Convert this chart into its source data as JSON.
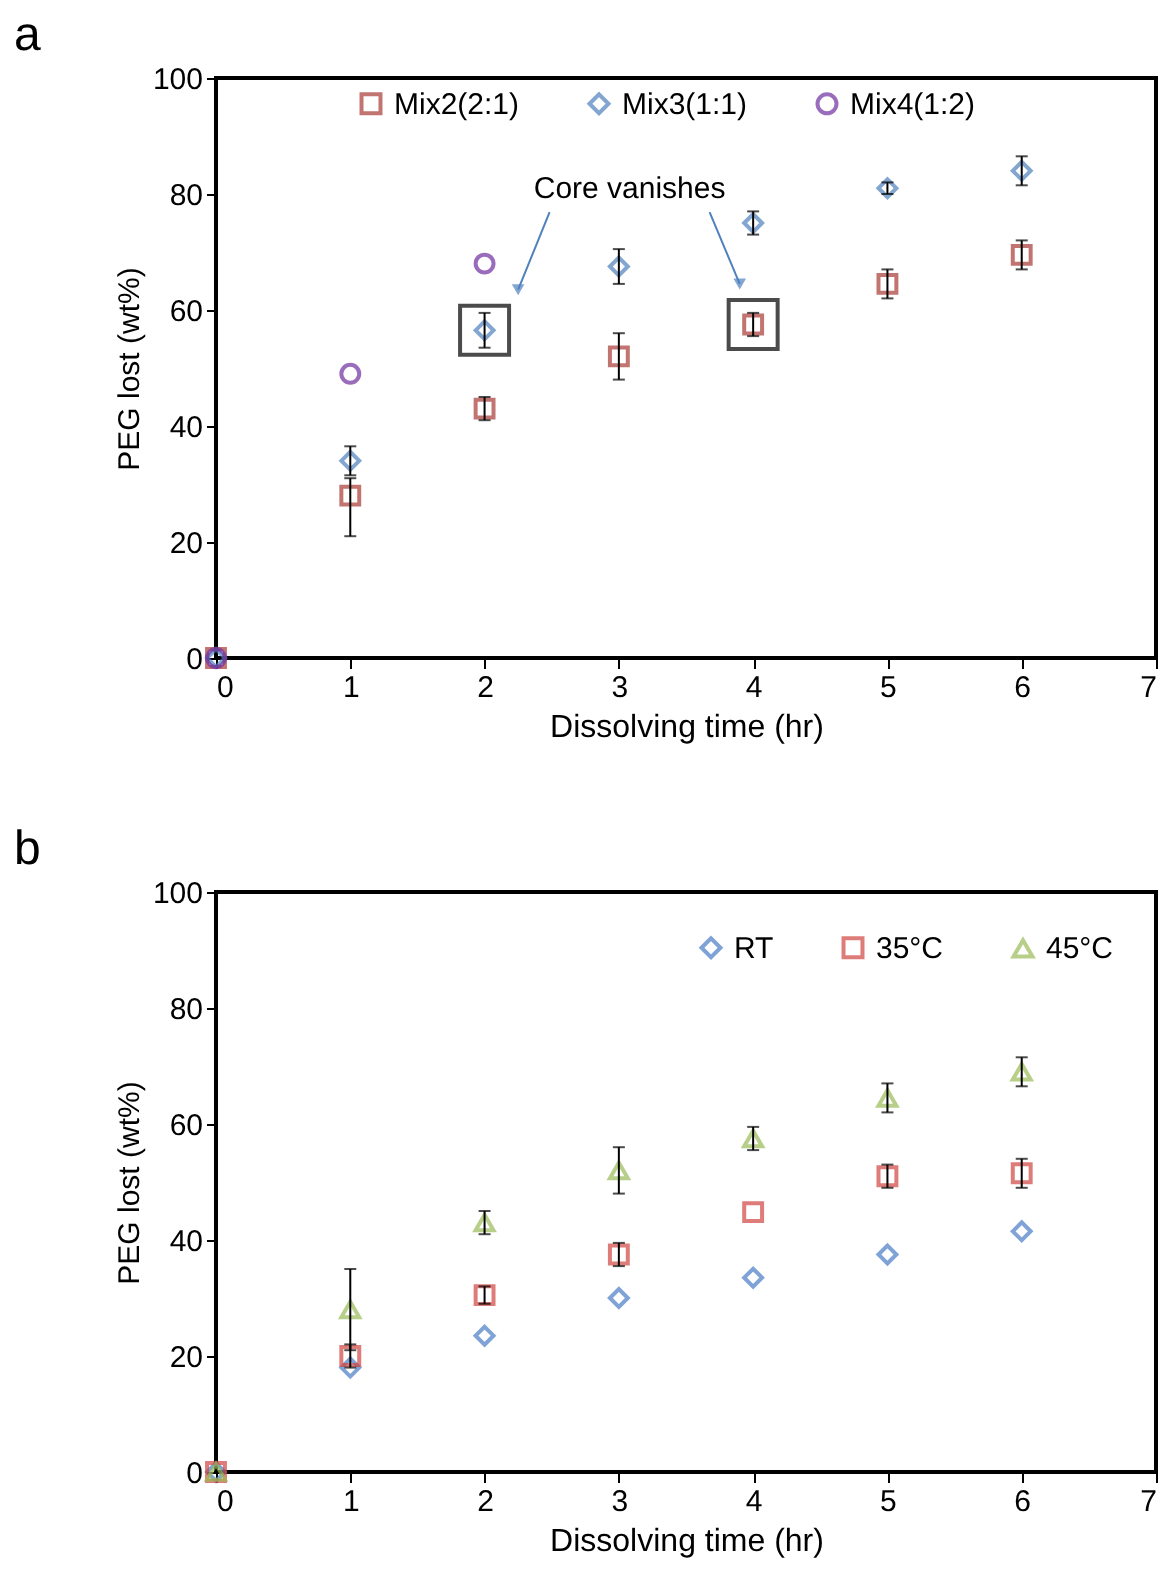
{
  "chart_data": [
    {
      "type": "scatter",
      "title": "a",
      "xlabel": "Dissolving time (hr)",
      "ylabel": "PEG lost (wt%)",
      "xlim": [
        0,
        7
      ],
      "xticks": [
        0,
        1,
        2,
        3,
        4,
        5,
        6,
        7
      ],
      "ylim": [
        0,
        100
      ],
      "yticks": [
        0,
        20,
        40,
        60,
        80,
        100
      ],
      "grid": false,
      "legend": "top",
      "annotations": [
        "Core vanishes"
      ],
      "series": [
        {
          "name": "Mix2(2:1)",
          "color": "#a93a35",
          "marker": "square",
          "x": [
            0,
            1,
            2,
            3,
            4,
            5,
            6
          ],
          "values": [
            0,
            28,
            43,
            52,
            57.5,
            64.5,
            69.5
          ],
          "errors": [
            null,
            [
              21,
              31
            ],
            2,
            4,
            2,
            2.5,
            2.5
          ]
        },
        {
          "name": "Mix3(1:1)",
          "color": "#4f81bd",
          "marker": "diamond",
          "x": [
            0,
            1,
            2,
            3,
            4,
            5,
            6
          ],
          "values": [
            0,
            34,
            56.5,
            67.5,
            75,
            81,
            84
          ],
          "errors": [
            null,
            2.5,
            3,
            3,
            2,
            1,
            2.5
          ]
        },
        {
          "name": "Mix4(1:2)",
          "color": "#7030a0",
          "marker": "circle",
          "x": [
            0,
            1,
            2
          ],
          "values": [
            0,
            49,
            68
          ]
        }
      ]
    },
    {
      "type": "scatter",
      "title": "b",
      "xlabel": "Dissolving time (hr)",
      "ylabel": "PEG lost (wt%)",
      "xlim": [
        0,
        7
      ],
      "xticks": [
        0,
        1,
        2,
        3,
        4,
        5,
        6,
        7
      ],
      "ylim": [
        0,
        100
      ],
      "yticks": [
        0,
        20,
        40,
        60,
        80,
        100
      ],
      "grid": false,
      "legend": "top right",
      "series": [
        {
          "name": "RT",
          "color": "#4a7cc7",
          "marker": "diamond",
          "x": [
            0,
            1,
            2,
            3,
            4,
            5,
            6
          ],
          "values": [
            0,
            18,
            23.5,
            30,
            33.5,
            37.5,
            41.5
          ]
        },
        {
          "name": "35°C",
          "color": "#d0453f",
          "marker": "square",
          "x": [
            0,
            1,
            2,
            3,
            4,
            5,
            6
          ],
          "values": [
            0,
            20,
            30.5,
            37.5,
            44.8,
            51,
            51.5
          ],
          "errors": [
            null,
            2,
            1.5,
            2,
            null,
            2,
            2.5
          ]
        },
        {
          "name": "45°C",
          "color": "#9bbb59",
          "marker": "triangle",
          "x": [
            0,
            1,
            2,
            3,
            4,
            5,
            6
          ],
          "values": [
            0,
            28,
            43,
            52,
            57.5,
            64.5,
            69
          ],
          "errors": [
            null,
            [
              21,
              35
            ],
            2,
            4,
            2,
            2.5,
            2.5
          ]
        }
      ]
    }
  ]
}
